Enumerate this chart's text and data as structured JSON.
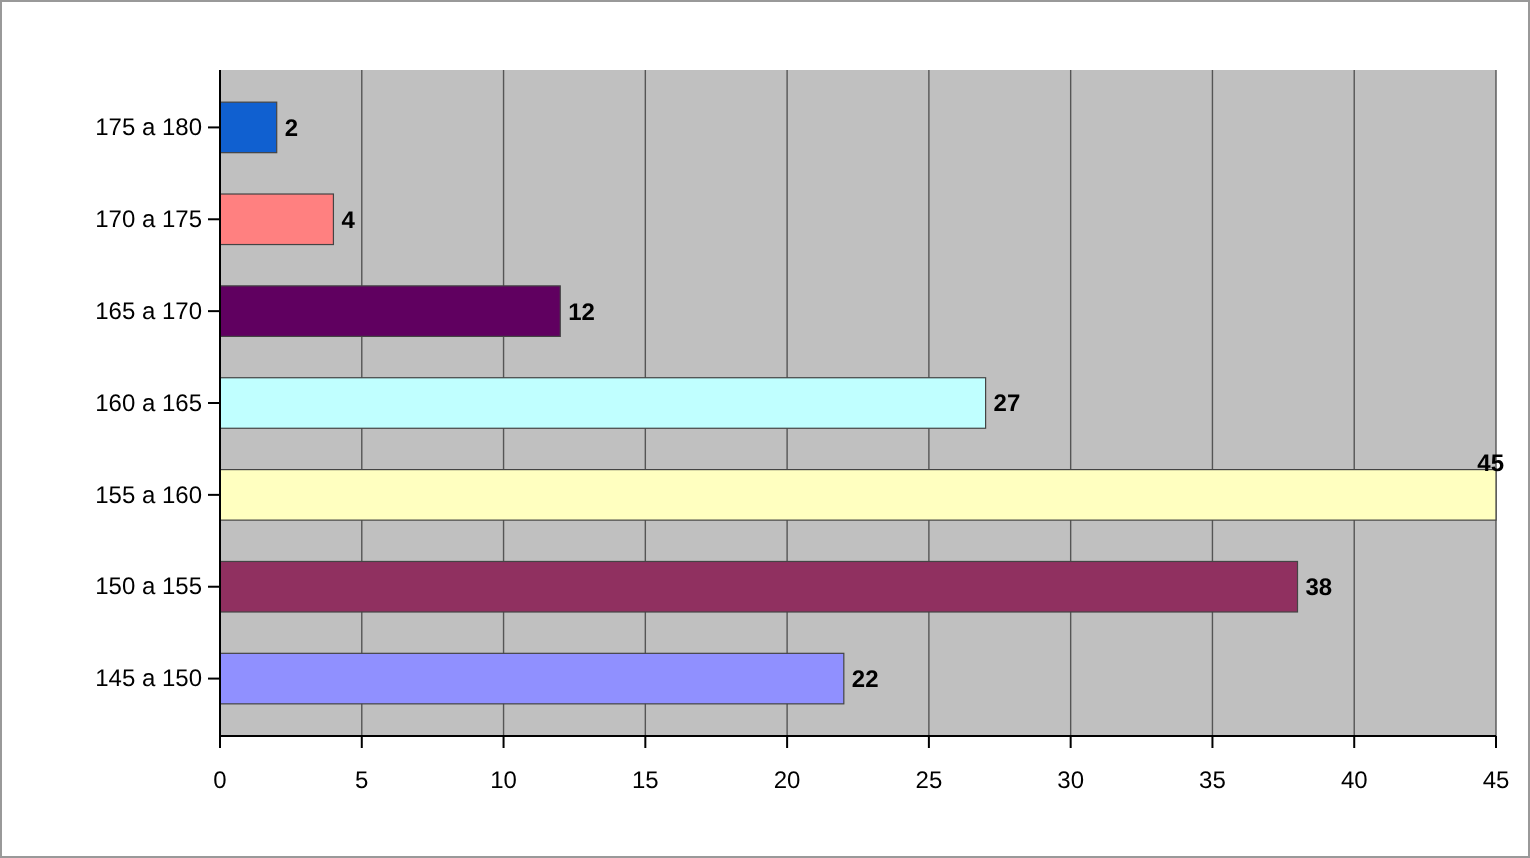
{
  "chart_data": {
    "type": "bar",
    "orientation": "horizontal",
    "categories": [
      "175 a 180",
      "170 a 175",
      "165 a 170",
      "160 a 165",
      "155 a 160",
      "150 a 155",
      "145 a 150"
    ],
    "values": [
      2,
      4,
      12,
      27,
      45,
      38,
      22
    ],
    "colors": [
      "#1060d0",
      "#ff8080",
      "#600060",
      "#c0ffff",
      "#ffffc0",
      "#903060",
      "#9090ff"
    ],
    "xlim": [
      0,
      45
    ],
    "xticks": [
      0,
      5,
      10,
      15,
      20,
      25,
      30,
      35,
      40,
      45
    ],
    "grid": "x",
    "data_labels": true
  }
}
